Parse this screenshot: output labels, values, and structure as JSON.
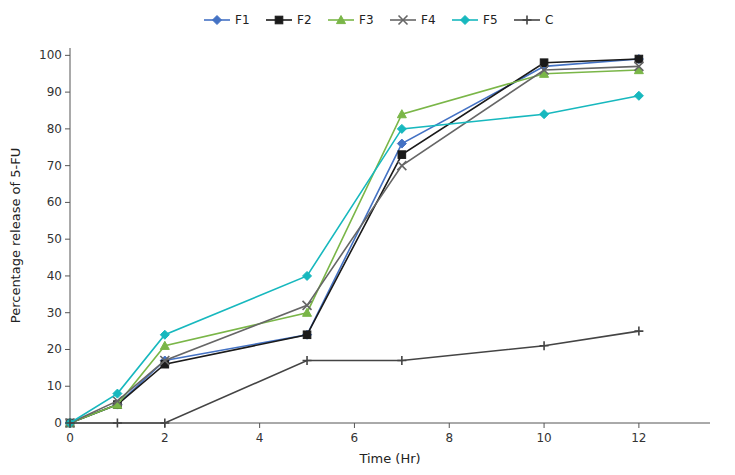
{
  "chart_data": {
    "type": "line",
    "xlabel": "Time (Hr)",
    "ylabel": "Percentage release of 5-FU",
    "x": [
      0,
      1,
      2,
      5,
      7,
      10,
      12
    ],
    "series": [
      {
        "name": "F1",
        "color": "#4472C4",
        "marker": "diamond",
        "values": [
          0,
          5,
          17,
          24,
          76,
          97,
          99
        ]
      },
      {
        "name": "F2",
        "color": "#1a1a1a",
        "marker": "square",
        "values": [
          0,
          5,
          16,
          24,
          73,
          98,
          99
        ]
      },
      {
        "name": "F3",
        "color": "#7AB648",
        "marker": "triangle",
        "values": [
          0,
          5,
          21,
          30,
          84,
          95,
          96
        ]
      },
      {
        "name": "F4",
        "color": "#666666",
        "marker": "x",
        "values": [
          0,
          6,
          17,
          32,
          70,
          96,
          97
        ]
      },
      {
        "name": "F5",
        "color": "#17B8BE",
        "marker": "diamond",
        "values": [
          0,
          8,
          24,
          40,
          80,
          84,
          89
        ]
      },
      {
        "name": "C",
        "color": "#444444",
        "marker": "plus",
        "values": [
          0,
          0,
          0,
          17,
          17,
          21,
          25
        ]
      }
    ],
    "xlim": [
      0,
      13.5
    ],
    "ylim": [
      0,
      102
    ],
    "xticks": [
      0,
      2,
      4,
      6,
      8,
      10,
      12
    ],
    "yticks": [
      0,
      10,
      20,
      30,
      40,
      50,
      60,
      70,
      80,
      90,
      100
    ],
    "grid": false,
    "legend": "top"
  }
}
